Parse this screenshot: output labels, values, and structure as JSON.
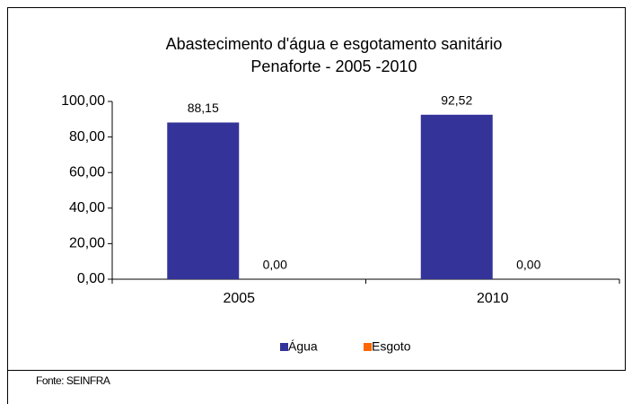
{
  "chart_data": {
    "type": "bar",
    "title": "Abastecimento d'água e esgotamento sanitário",
    "subtitle": "Penaforte - 2005 -2010",
    "categories": [
      "2005",
      "2010"
    ],
    "series": [
      {
        "name": "Água",
        "color": "#333399",
        "values": [
          88.15,
          92.52
        ],
        "value_labels": [
          "88,15",
          "92,52"
        ]
      },
      {
        "name": "Esgoto",
        "color": "#FF6600",
        "values": [
          0,
          0
        ],
        "value_labels": [
          "0,00",
          "0,00"
        ]
      }
    ],
    "ylim": [
      0,
      100
    ],
    "yticks": [
      {
        "value": 0,
        "label": "0,00"
      },
      {
        "value": 20,
        "label": "20,00"
      },
      {
        "value": 40,
        "label": "40,00"
      },
      {
        "value": 60,
        "label": "60,00"
      },
      {
        "value": 80,
        "label": "80,00"
      },
      {
        "value": 100,
        "label": "100,00"
      }
    ],
    "grid": false,
    "legend": "bottom",
    "source": "Fonte: SEINFRA"
  }
}
